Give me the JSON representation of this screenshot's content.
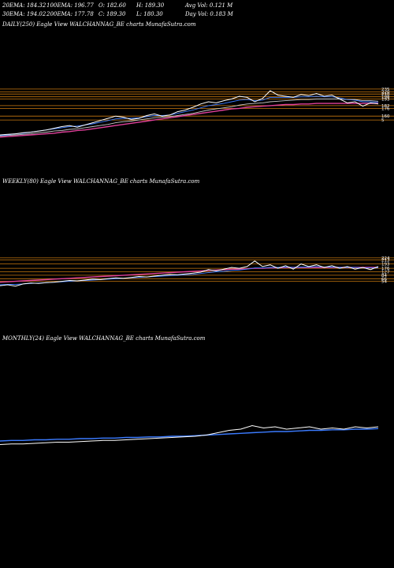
{
  "header": {
    "row1": [
      "20EMA: 184.32",
      "100EMA: 196.77",
      "O: 182.60",
      "H: 189.30",
      "Avg Vol: 0.121 M"
    ],
    "row2": [
      "30EMA: 194.02",
      "200EMA: 177.78",
      "C: 189.30",
      "L: 180.30",
      "Day Vol: 0.183 M"
    ]
  },
  "colors": {
    "background": "#000000",
    "price": "#ffffff",
    "ema_short": "#3b7bff",
    "ema_long": "#e0409a",
    "levels": "#c8780f"
  },
  "chart_data": [
    {
      "type": "line",
      "title": "DAILY(250) Eagle  View  WALCHANNAG_BE charts MunafaSutra.com",
      "right_labels": [
        "235",
        "220",
        "210",
        "198",
        "193",
        "182",
        "176",
        "160",
        "5"
      ],
      "series": [
        {
          "values": [
            0.1,
            0.11,
            0.12,
            0.14,
            0.15,
            0.17,
            0.19,
            0.22,
            0.25,
            0.27,
            0.24,
            0.28,
            0.32,
            0.36,
            0.4,
            0.44,
            0.42,
            0.38,
            0.4,
            0.45,
            0.48,
            0.44,
            0.46,
            0.52,
            0.55,
            0.6,
            0.66,
            0.7,
            0.68,
            0.72,
            0.75,
            0.8,
            0.78,
            0.7,
            0.76,
            0.9,
            0.82,
            0.8,
            0.78,
            0.83,
            0.81,
            0.85,
            0.8,
            0.82,
            0.75,
            0.68,
            0.7,
            0.62,
            0.68,
            0.66
          ]
        },
        {
          "values": [
            0.09,
            0.1,
            0.12,
            0.13,
            0.15,
            0.17,
            0.19,
            0.21,
            0.23,
            0.25,
            0.26,
            0.28,
            0.3,
            0.33,
            0.36,
            0.39,
            0.4,
            0.4,
            0.41,
            0.43,
            0.45,
            0.45,
            0.46,
            0.49,
            0.52,
            0.55,
            0.59,
            0.63,
            0.65,
            0.67,
            0.7,
            0.73,
            0.74,
            0.72,
            0.73,
            0.78,
            0.78,
            0.78,
            0.78,
            0.79,
            0.79,
            0.8,
            0.79,
            0.79,
            0.77,
            0.74,
            0.73,
            0.7,
            0.7,
            0.69
          ]
        },
        {
          "values": [
            0.08,
            0.09,
            0.1,
            0.11,
            0.12,
            0.14,
            0.15,
            0.17,
            0.18,
            0.2,
            0.21,
            0.23,
            0.25,
            0.27,
            0.29,
            0.32,
            0.34,
            0.35,
            0.37,
            0.39,
            0.41,
            0.42,
            0.43,
            0.45,
            0.47,
            0.49,
            0.52,
            0.55,
            0.57,
            0.59,
            0.61,
            0.64,
            0.66,
            0.67,
            0.68,
            0.7,
            0.71,
            0.72,
            0.73,
            0.74,
            0.74,
            0.75,
            0.75,
            0.75,
            0.75,
            0.74,
            0.74,
            0.72,
            0.72,
            0.71
          ]
        },
        {
          "values": [
            0.06,
            0.07,
            0.08,
            0.09,
            0.1,
            0.11,
            0.12,
            0.13,
            0.15,
            0.16,
            0.18,
            0.19,
            0.21,
            0.23,
            0.25,
            0.27,
            0.29,
            0.31,
            0.33,
            0.35,
            0.37,
            0.39,
            0.41,
            0.43,
            0.45,
            0.47,
            0.49,
            0.51,
            0.53,
            0.55,
            0.57,
            0.58,
            0.6,
            0.61,
            0.62,
            0.63,
            0.64,
            0.65,
            0.65,
            0.66,
            0.66,
            0.67,
            0.67,
            0.67,
            0.67,
            0.67,
            0.67,
            0.67,
            0.67,
            0.67
          ]
        }
      ],
      "levels": [
        0.93,
        0.88,
        0.84,
        0.79,
        0.75,
        0.63,
        0.58,
        0.44,
        0.37
      ]
    },
    {
      "type": "line",
      "title": "WEEKLY(80) Eagle  View  WALCHANNAG_BE charts MunafaSutra.com",
      "right_labels": [
        "224",
        "213",
        "193",
        "176",
        "127",
        "84",
        "66",
        "54"
      ],
      "series": [
        {
          "values": [
            0.18,
            0.2,
            0.17,
            0.22,
            0.24,
            0.23,
            0.25,
            0.26,
            0.28,
            0.3,
            0.29,
            0.31,
            0.33,
            0.32,
            0.34,
            0.36,
            0.35,
            0.37,
            0.39,
            0.38,
            0.4,
            0.42,
            0.44,
            0.43,
            0.45,
            0.47,
            0.49,
            0.55,
            0.52,
            0.56,
            0.6,
            0.58,
            0.62,
            0.75,
            0.62,
            0.66,
            0.58,
            0.64,
            0.56,
            0.68,
            0.62,
            0.66,
            0.6,
            0.64,
            0.58,
            0.62,
            0.56,
            0.6,
            0.55,
            0.62
          ]
        },
        {
          "values": [
            0.2,
            0.21,
            0.21,
            0.22,
            0.23,
            0.24,
            0.25,
            0.26,
            0.27,
            0.28,
            0.29,
            0.3,
            0.31,
            0.32,
            0.33,
            0.34,
            0.35,
            0.36,
            0.37,
            0.38,
            0.39,
            0.4,
            0.41,
            0.42,
            0.43,
            0.44,
            0.46,
            0.48,
            0.5,
            0.51,
            0.53,
            0.54,
            0.56,
            0.59,
            0.59,
            0.6,
            0.6,
            0.61,
            0.6,
            0.61,
            0.61,
            0.62,
            0.61,
            0.61,
            0.6,
            0.6,
            0.6,
            0.59,
            0.59,
            0.59
          ]
        },
        {
          "values": [
            0.26,
            0.27,
            0.28,
            0.29,
            0.3,
            0.31,
            0.32,
            0.33,
            0.34,
            0.35,
            0.36,
            0.37,
            0.38,
            0.39,
            0.4,
            0.41,
            0.42,
            0.43,
            0.44,
            0.45,
            0.46,
            0.47,
            0.48,
            0.49,
            0.5,
            0.51,
            0.52,
            0.53,
            0.54,
            0.55,
            0.56,
            0.56,
            0.57,
            0.58,
            0.58,
            0.59,
            0.59,
            0.6,
            0.6,
            0.6,
            0.6,
            0.6,
            0.6,
            0.6,
            0.6,
            0.6,
            0.6,
            0.6,
            0.6,
            0.6
          ]
        }
      ],
      "levels": [
        0.82,
        0.77,
        0.68,
        0.58,
        0.5,
        0.42,
        0.34,
        0.28
      ]
    },
    {
      "type": "line",
      "title": "MONTHLY(24) Eagle  View  WALCHANNAG_BE charts MunafaSutra.com",
      "right_labels": [],
      "series": [
        {
          "values": [
            0.1,
            0.11,
            0.11,
            0.12,
            0.13,
            0.14,
            0.14,
            0.15,
            0.16,
            0.17,
            0.17,
            0.18,
            0.19,
            0.2,
            0.21,
            0.22,
            0.23,
            0.24,
            0.26,
            0.3,
            0.34,
            0.36,
            0.42,
            0.38,
            0.4,
            0.36,
            0.38,
            0.4,
            0.36,
            0.38,
            0.36,
            0.4,
            0.38,
            0.4
          ]
        },
        {
          "values": [
            0.16,
            0.17,
            0.17,
            0.18,
            0.18,
            0.19,
            0.19,
            0.2,
            0.2,
            0.21,
            0.21,
            0.22,
            0.22,
            0.23,
            0.23,
            0.24,
            0.24,
            0.25,
            0.26,
            0.27,
            0.28,
            0.29,
            0.3,
            0.31,
            0.32,
            0.32,
            0.33,
            0.34,
            0.34,
            0.35,
            0.35,
            0.36,
            0.36,
            0.37
          ]
        }
      ],
      "levels": []
    }
  ]
}
